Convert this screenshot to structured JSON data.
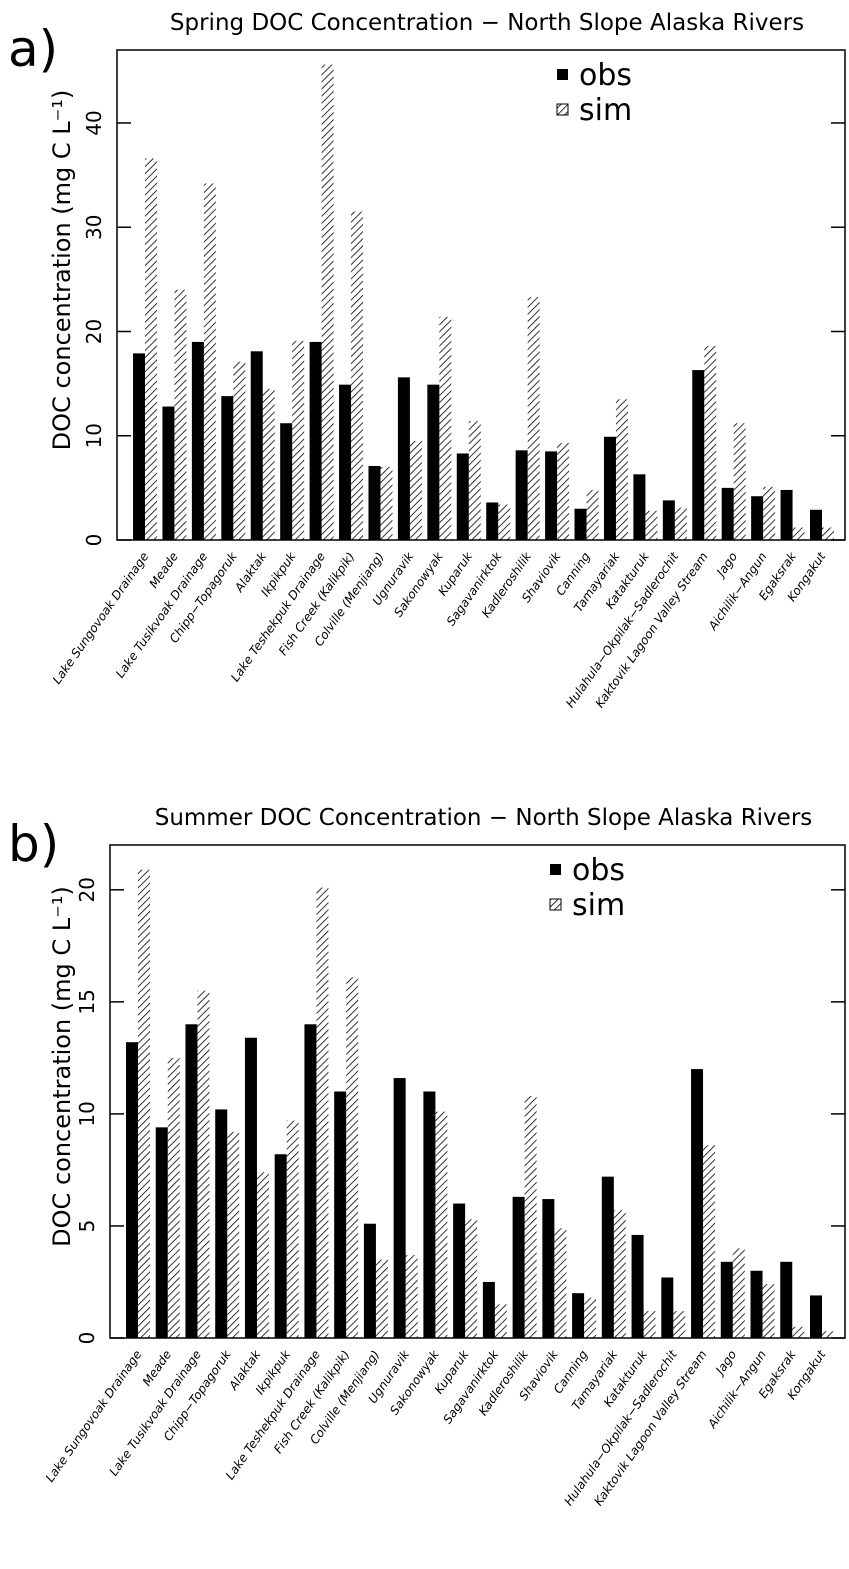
{
  "chart_data": [
    {
      "type": "bar",
      "panel_label": "a)",
      "title": "Spring DOC Concentration − North Slope Alaska Rivers",
      "y_label": "DOC concentration (mg C L⁻¹)",
      "categories": [
        "Lake Sungovoak Drainage",
        "Meade",
        "Lake Tusikvoak Drainage",
        "Chipp−Topagoruk",
        "Alaktak",
        "Ikpikpuk",
        "Lake Teshekpuk Drainage",
        "Fish Creek (Kalikpik)",
        "Colville (Menjiang)",
        "Ugnuravik",
        "Sakonowyak",
        "Kuparuk",
        "Sagavanirktok",
        "Kadleroshilik",
        "Shaviovik",
        "Canning",
        "Tamayariak",
        "Katakturuk",
        "Hulahula−Okpilak−Sadlerochit",
        "Kaktovik Lagoon Valley Stream",
        "Jago",
        "Aichilik−Angun",
        "Egaksrak",
        "Kongakut"
      ],
      "series": [
        {
          "name": "obs",
          "color": "#000000",
          "fill": "solid",
          "values": [
            17.9,
            12.8,
            19.0,
            13.8,
            18.1,
            11.2,
            19.0,
            14.9,
            7.1,
            15.6,
            14.9,
            8.3,
            3.6,
            8.6,
            8.5,
            3.0,
            9.9,
            6.3,
            3.8,
            16.3,
            5.0,
            4.2,
            4.8,
            2.9
          ]
        },
        {
          "name": "sim",
          "color": "#000000",
          "fill": "hatch",
          "values": [
            36.6,
            24.0,
            34.2,
            17.1,
            14.5,
            19.1,
            45.6,
            31.5,
            7.0,
            9.5,
            21.4,
            11.4,
            3.4,
            23.3,
            9.3,
            4.8,
            13.5,
            2.8,
            3.1,
            18.6,
            11.2,
            5.1,
            1.2,
            1.2
          ]
        }
      ],
      "ylim": [
        0,
        47
      ],
      "yticks": [
        0,
        10,
        20,
        30,
        40
      ],
      "legend": "upper right"
    },
    {
      "type": "bar",
      "panel_label": "b)",
      "title": "Summer DOC Concentration − North Slope Alaska Rivers",
      "y_label": "DOC concentration (mg C L⁻¹)",
      "categories": [
        "Lake Sungovoak Drainage",
        "Meade",
        "Lake Tusikvoak Drainage",
        "Chipp−Topagoruk",
        "Alaktak",
        "Ikpikpuk",
        "Lake Teshekpuk Drainage",
        "Fish Creek (Kalikpik)",
        "Colville (Menjiang)",
        "Ugnuravik",
        "Sakonowyak",
        "Kuparuk",
        "Sagavanirktok",
        "Kadleroshilik",
        "Shaviovik",
        "Canning",
        "Tamayariak",
        "Katakturuk",
        "Hulahula−Okpilak−Sadlerochit",
        "Kaktovik Lagoon Valley Stream",
        "Jago",
        "Aichilik−Angun",
        "Egaksrak",
        "Kongakut"
      ],
      "series": [
        {
          "name": "obs",
          "color": "#000000",
          "fill": "solid",
          "values": [
            13.2,
            9.4,
            14.0,
            10.2,
            13.4,
            8.2,
            14.0,
            11.0,
            5.1,
            11.6,
            11.0,
            6.0,
            2.5,
            6.3,
            6.2,
            2.0,
            7.2,
            4.6,
            2.7,
            12.0,
            3.4,
            3.0,
            3.4,
            1.9
          ]
        },
        {
          "name": "sim",
          "color": "#000000",
          "fill": "hatch",
          "values": [
            20.9,
            12.5,
            15.5,
            9.2,
            7.4,
            9.7,
            20.1,
            16.1,
            3.5,
            3.7,
            10.1,
            5.3,
            1.5,
            10.8,
            4.9,
            1.8,
            5.7,
            1.2,
            1.2,
            8.6,
            4.0,
            2.4,
            0.5,
            0.3
          ]
        }
      ],
      "ylim": [
        0,
        22
      ],
      "yticks": [
        0,
        5,
        10,
        15,
        20
      ],
      "legend": "upper right"
    }
  ]
}
